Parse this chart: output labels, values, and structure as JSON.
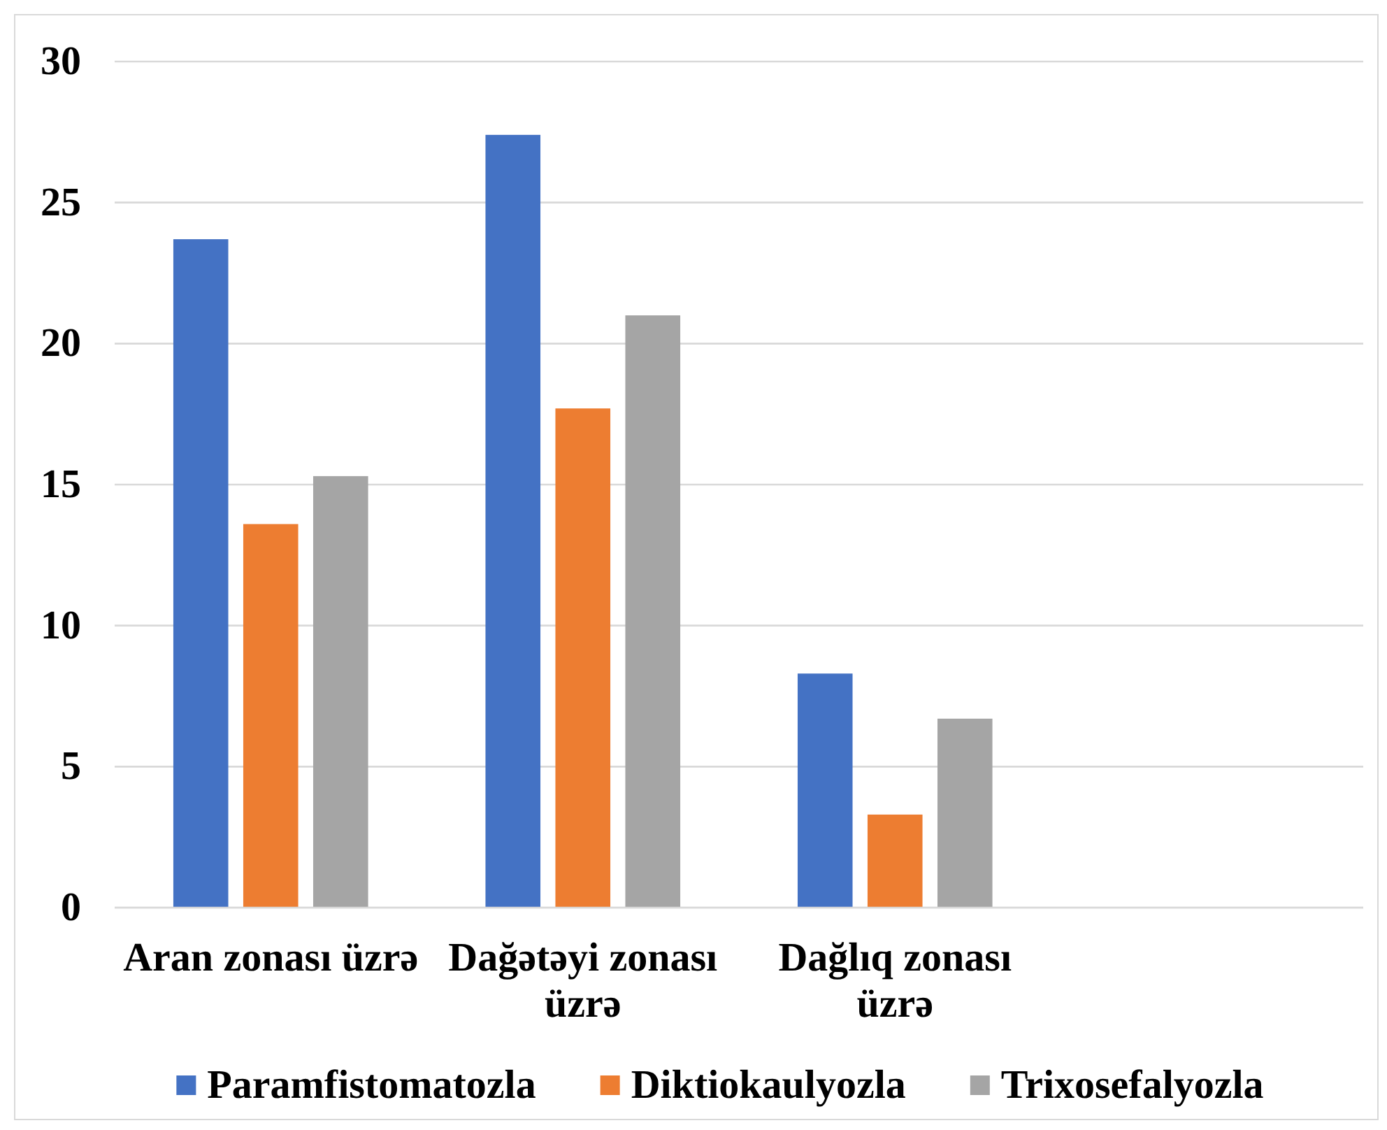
{
  "chart_data": {
    "type": "bar",
    "categories": [
      "Aran zonası üzrə",
      "Dağətəyi zonası üzrə",
      "Dağlıq zonası üzrə",
      null
    ],
    "series": [
      {
        "name": "Paramfistomatozla",
        "color": "#4472c4",
        "values": [
          23.7,
          27.4,
          8.3,
          null
        ]
      },
      {
        "name": "Diktiokaulyozla",
        "color": "#ed7d31",
        "values": [
          13.6,
          17.7,
          3.3,
          null
        ]
      },
      {
        "name": "Trixosefalyozla",
        "color": "#a5a5a5",
        "values": [
          15.3,
          21.0,
          6.7,
          null
        ]
      }
    ],
    "ylim": [
      0,
      30
    ],
    "yticks": [
      0,
      5,
      10,
      15,
      20,
      25,
      30
    ],
    "grid": "y",
    "legend": "bottom"
  }
}
